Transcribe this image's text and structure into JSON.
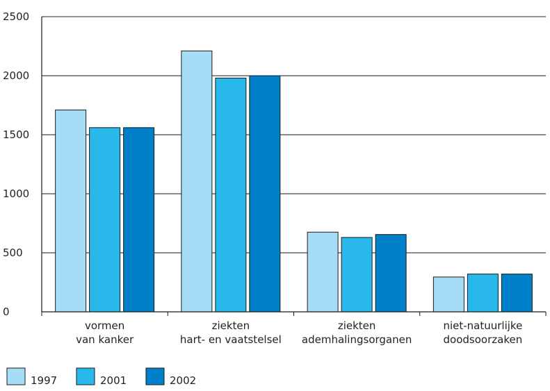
{
  "chart_data": {
    "type": "bar",
    "categories": [
      [
        "vormen",
        "van kanker"
      ],
      [
        "ziekten",
        "hart- en vaatstelsel"
      ],
      [
        "ziekten",
        "ademhalingsorganen"
      ],
      [
        "niet-natuurlijke",
        "doodsoorzaken"
      ]
    ],
    "series": [
      {
        "name": "1997",
        "color": "#a6dcf5",
        "values": [
          1710,
          2210,
          675,
          295
        ]
      },
      {
        "name": "2001",
        "color": "#28b8ea",
        "values": [
          1560,
          1980,
          630,
          320
        ]
      },
      {
        "name": "2002",
        "color": "#0080c8",
        "values": [
          1560,
          2000,
          655,
          320
        ]
      }
    ],
    "yticks": [
      "0",
      "500",
      "1000",
      "1500",
      "2000",
      "2500"
    ],
    "ylim": [
      0,
      2500
    ],
    "grid": true,
    "legend_position": "bottom-left",
    "title": "",
    "xlabel": "",
    "ylabel": ""
  }
}
